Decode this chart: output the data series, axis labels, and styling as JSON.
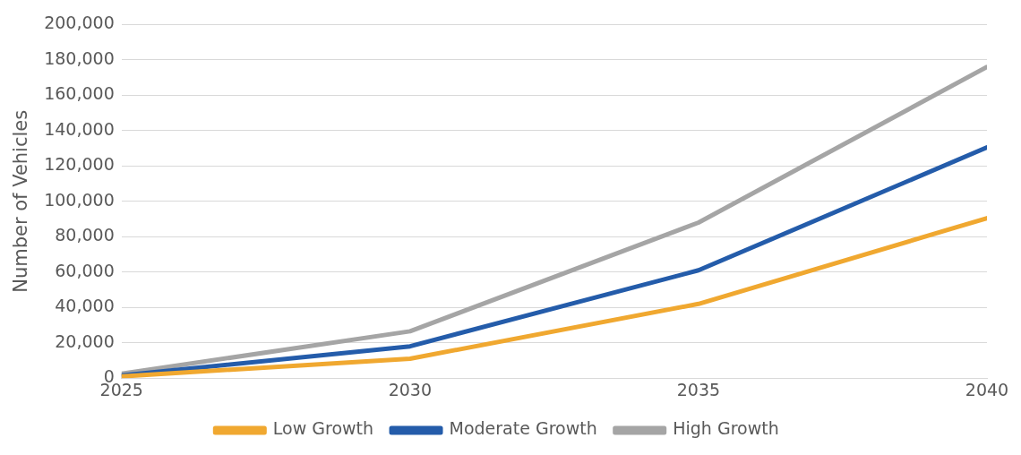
{
  "chart_data": {
    "type": "line",
    "ylabel": "Number of Vehicles",
    "x": [
      2025,
      2030,
      2035,
      2040
    ],
    "series": [
      {
        "name": "Low Growth",
        "color": "#f0a830",
        "values": [
          1000,
          11000,
          42000,
          90500
        ]
      },
      {
        "name": "Moderate Growth",
        "color": "#245caa",
        "values": [
          1500,
          18000,
          61000,
          130500
        ]
      },
      {
        "name": "High Growth",
        "color": "#a5a5a5",
        "values": [
          2500,
          26500,
          88000,
          176000
        ]
      }
    ],
    "xlim": [
      2025,
      2040
    ],
    "xticks": [
      2025,
      2030,
      2035,
      2040
    ],
    "ylim": [
      0,
      200000
    ],
    "yticks": [
      {
        "value": 0,
        "label": "0"
      },
      {
        "value": 20000,
        "label": "20,000"
      },
      {
        "value": 40000,
        "label": "40,000"
      },
      {
        "value": 60000,
        "label": "60,000"
      },
      {
        "value": 80000,
        "label": "80,000"
      },
      {
        "value": 100000,
        "label": "100,000"
      },
      {
        "value": 120000,
        "label": "120,000"
      },
      {
        "value": 140000,
        "label": "140,000"
      },
      {
        "value": 160000,
        "label": "160,000"
      },
      {
        "value": 180000,
        "label": "180,000"
      },
      {
        "value": 200000,
        "label": "200,000"
      }
    ],
    "grid": "y",
    "legend": "bottom",
    "marker": "none",
    "line_style": "solid"
  }
}
